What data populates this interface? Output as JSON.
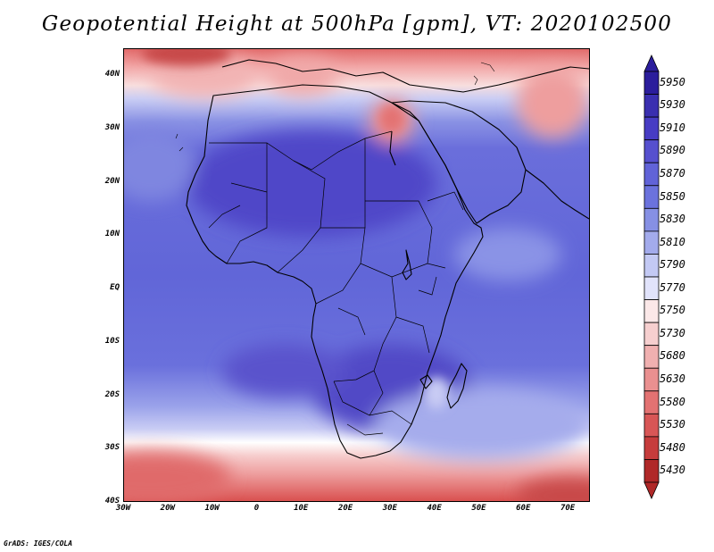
{
  "title": "Geopotential Height at 500hPa [gpm], VT: 2020102500",
  "credit": "GrADS: IGES/COLA",
  "map": {
    "region": "Africa",
    "projection": "latlon",
    "lon_range": [
      -30,
      75
    ],
    "lat_range": [
      -40,
      45
    ],
    "lat_ticks": [
      "40N",
      "30N",
      "20N",
      "10N",
      "EQ",
      "10S",
      "20S",
      "30S",
      "40S"
    ],
    "lon_ticks": [
      "30W",
      "20W",
      "10W",
      "0",
      "10E",
      "20E",
      "30E",
      "40E",
      "50E",
      "60E",
      "70E"
    ]
  },
  "colorbar": {
    "orientation": "vertical",
    "levels": [
      "5950",
      "5930",
      "5910",
      "5890",
      "5870",
      "5850",
      "5830",
      "5810",
      "5790",
      "5770",
      "5750",
      "5730",
      "5680",
      "5630",
      "5580",
      "5530",
      "5480",
      "5430"
    ],
    "colors": [
      "#2b1d9c",
      "#3a2fb0",
      "#473cc4",
      "#5650cf",
      "#6163d8",
      "#6b72dd",
      "#8690e4",
      "#a3abec",
      "#c3c9f4",
      "#e1e3fb",
      "#fbe8e8",
      "#f6cfcf",
      "#f0b0b0",
      "#ea9090",
      "#e37272",
      "#d85656",
      "#c63c3c",
      "#b02828"
    ]
  }
}
